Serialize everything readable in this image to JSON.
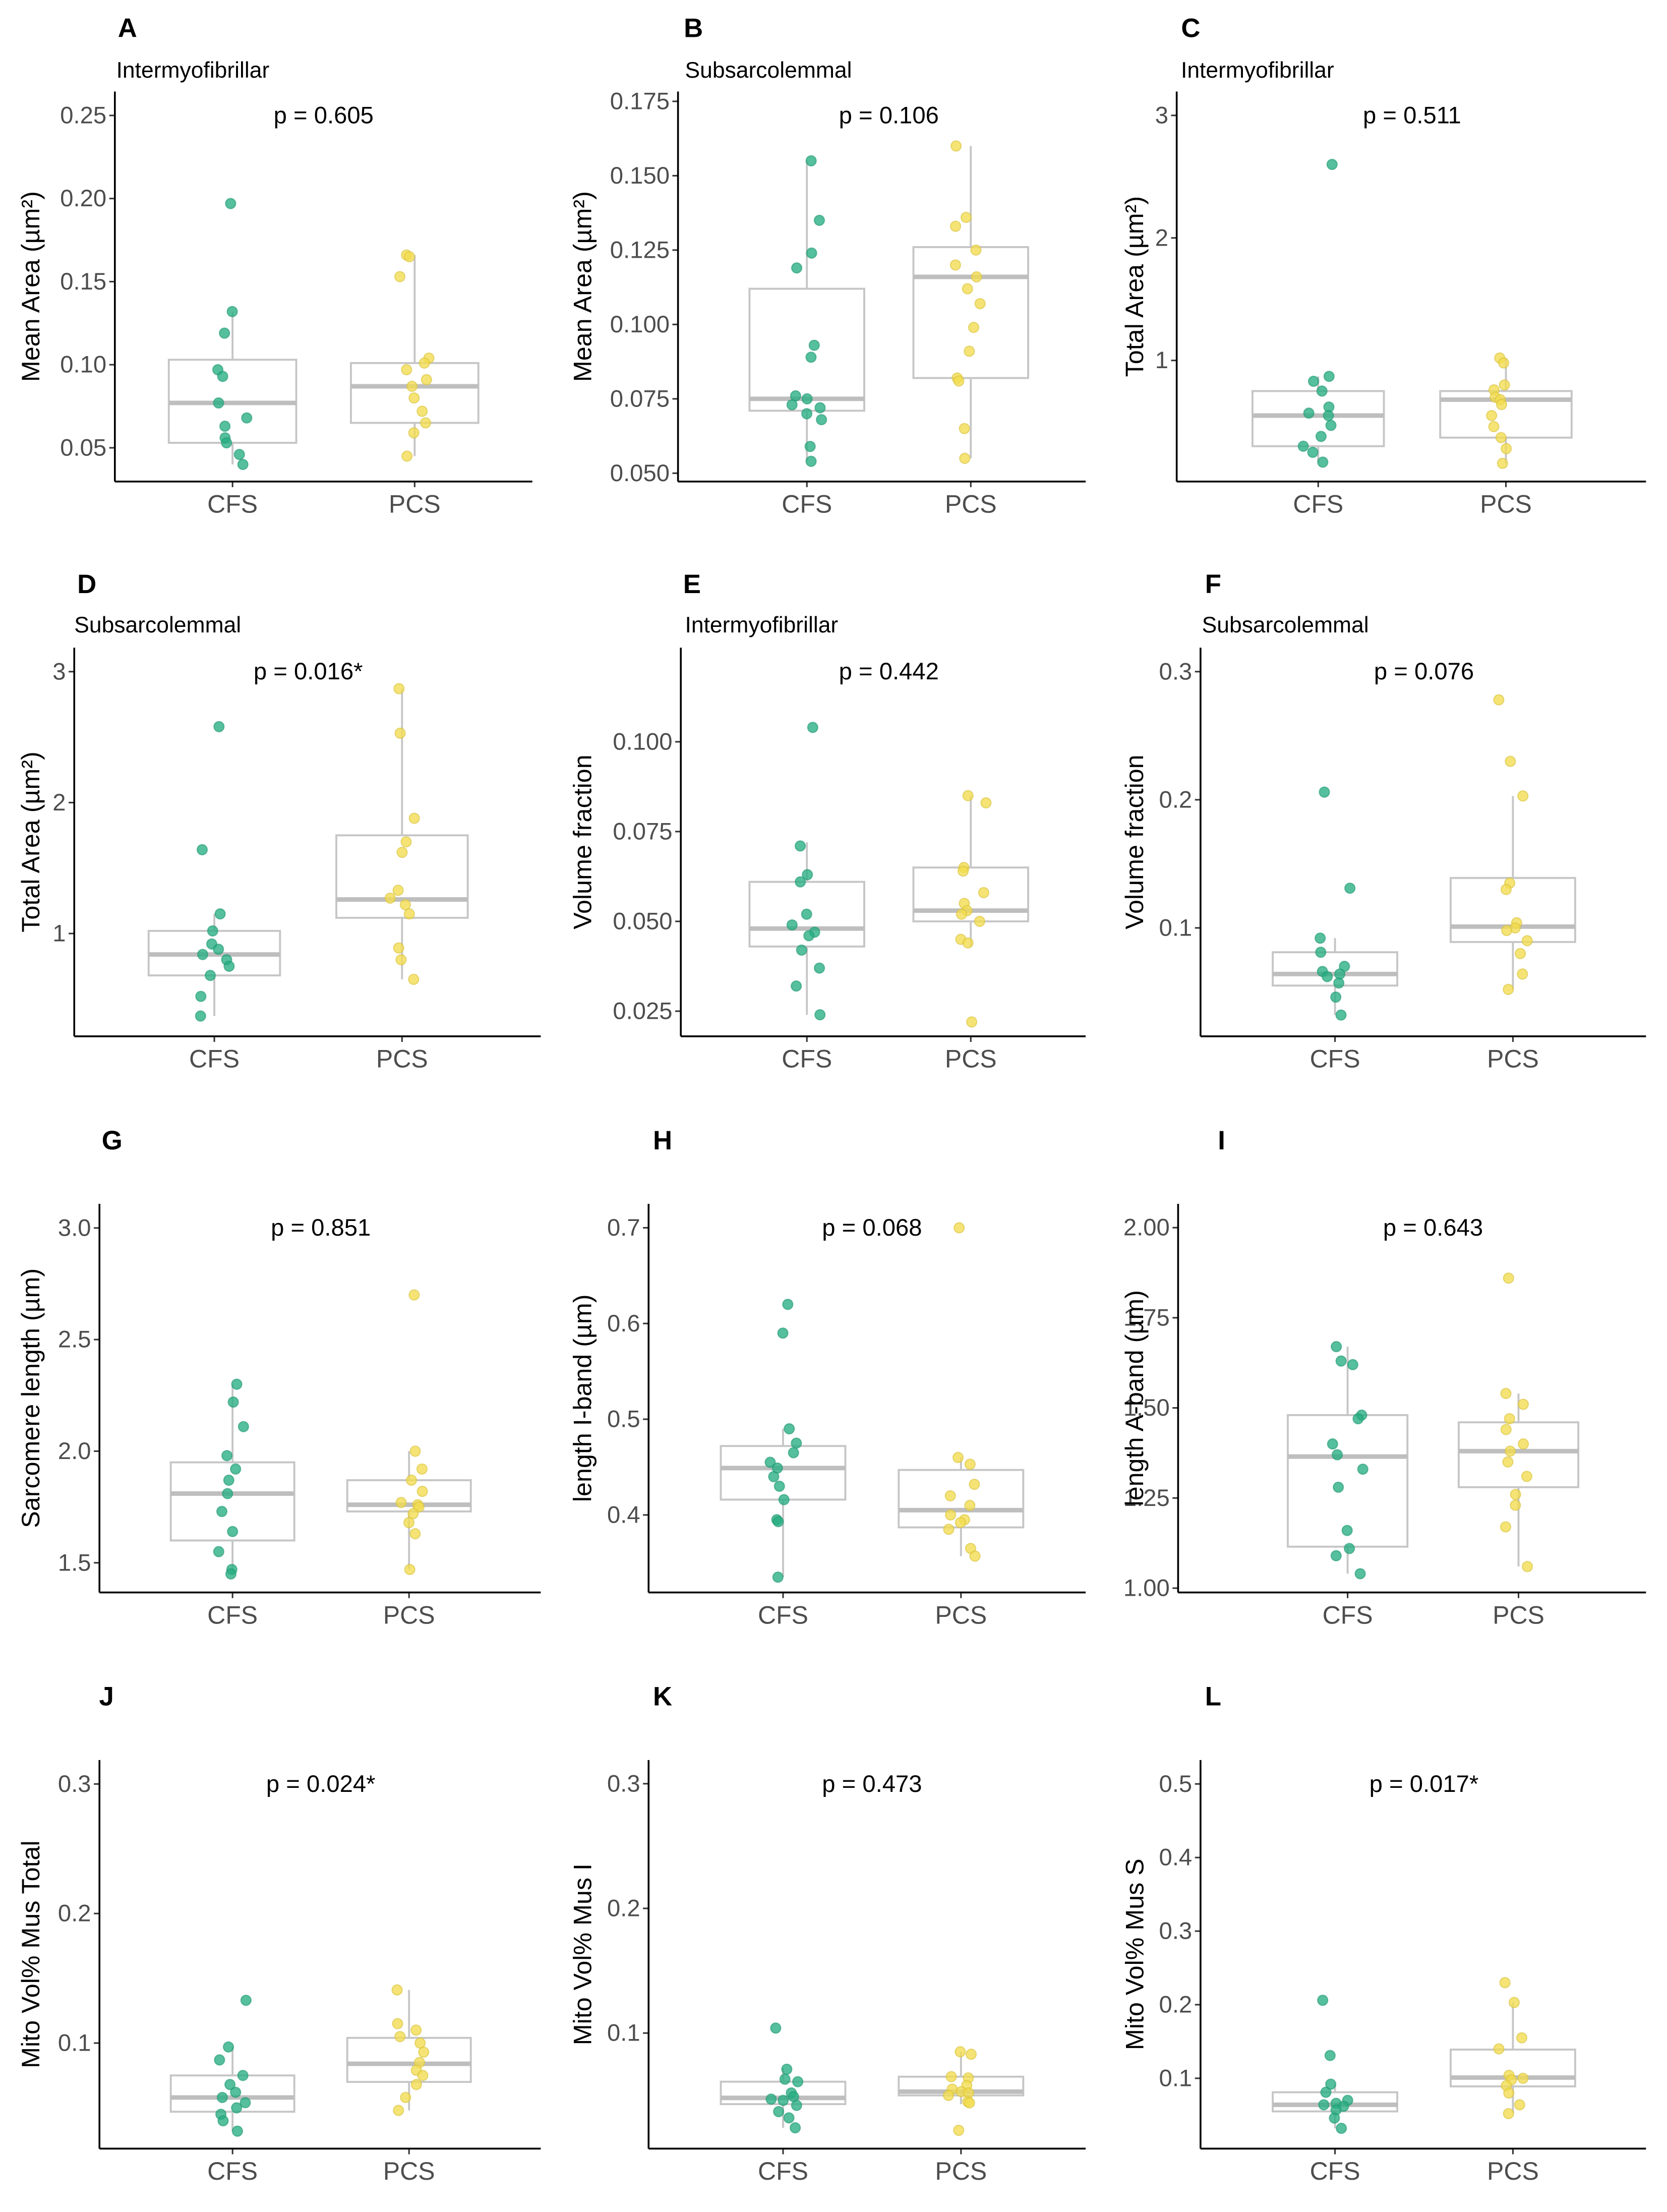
{
  "palette": {
    "groups": [
      "#27ad81",
      "#f2dc4e"
    ],
    "group_strokes": [
      "#1f9a70",
      "#d9c23a"
    ]
  },
  "chart_data": [
    {
      "panel": "A",
      "type": "scatter",
      "subtitle": "Intermyofibrillar",
      "title": "p = 0.605",
      "ylabel": "Mean Area (µm²)",
      "categories": [
        "CFS",
        "PCS"
      ],
      "yticks": [
        "0.05",
        "0.10",
        "0.15",
        "0.20",
        "0.25"
      ],
      "ylim": [
        0.0297,
        0.2644
      ],
      "series": [
        {
          "box": {
            "q1": 0.053,
            "median": 0.077,
            "q3": 0.103,
            "whisker_low": 0.04,
            "whisker_high": 0.132
          },
          "values": [
            0.197,
            0.132,
            0.119,
            0.097,
            0.093,
            0.077,
            0.068,
            0.063,
            0.056,
            0.053,
            0.046,
            0.04
          ]
        },
        {
          "box": {
            "q1": 0.065,
            "median": 0.087,
            "q3": 0.101,
            "whisker_low": 0.045,
            "whisker_high": 0.166
          },
          "values": [
            0.166,
            0.165,
            0.153,
            0.104,
            0.101,
            0.097,
            0.091,
            0.087,
            0.08,
            0.072,
            0.065,
            0.059,
            0.045
          ]
        }
      ]
    },
    {
      "panel": "B",
      "type": "scatter",
      "subtitle": "Subsarcolemmal",
      "title": "p = 0.106",
      "ylabel": "Mean Area (µm²)",
      "categories": [
        "CFS",
        "PCS"
      ],
      "yticks": [
        "0.050",
        "0.075",
        "0.100",
        "0.125",
        "0.150",
        "0.175"
      ],
      "ylim": [
        0.0472,
        0.1783
      ],
      "series": [
        {
          "box": {
            "q1": 0.071,
            "median": 0.075,
            "q3": 0.112,
            "whisker_low": 0.054,
            "whisker_high": 0.155
          },
          "values": [
            0.155,
            0.135,
            0.124,
            0.119,
            0.093,
            0.089,
            0.076,
            0.075,
            0.073,
            0.072,
            0.07,
            0.068,
            0.059,
            0.054
          ]
        },
        {
          "box": {
            "q1": 0.082,
            "median": 0.116,
            "q3": 0.126,
            "whisker_low": 0.055,
            "whisker_high": 0.16
          },
          "values": [
            0.16,
            0.136,
            0.133,
            0.125,
            0.12,
            0.116,
            0.112,
            0.107,
            0.099,
            0.091,
            0.082,
            0.081,
            0.065,
            0.055
          ]
        }
      ]
    },
    {
      "panel": "C",
      "type": "scatter",
      "subtitle": "Intermyofibrillar",
      "title": "p = 0.511",
      "ylabel": "Total Area (µm²)",
      "categories": [
        "CFS",
        "PCS"
      ],
      "yticks": [
        "1",
        "2",
        "3"
      ],
      "ylim": [
        0.0115,
        3.195
      ],
      "series": [
        {
          "box": {
            "q1": 0.3,
            "median": 0.55,
            "q3": 0.75,
            "whisker_low": 0.17,
            "whisker_high": 0.87
          },
          "values": [
            2.6,
            0.87,
            0.83,
            0.75,
            0.62,
            0.57,
            0.55,
            0.47,
            0.38,
            0.3,
            0.25,
            0.17
          ]
        },
        {
          "box": {
            "q1": 0.37,
            "median": 0.68,
            "q3": 0.75,
            "whisker_low": 0.16,
            "whisker_high": 1.02
          },
          "values": [
            1.02,
            0.98,
            0.8,
            0.76,
            0.7,
            0.68,
            0.64,
            0.55,
            0.46,
            0.37,
            0.28,
            0.16
          ]
        }
      ]
    },
    {
      "panel": "D",
      "type": "scatter",
      "subtitle": "Subsarcolemmal",
      "title": "p = 0.016*",
      "ylabel": "Total Area (µm²)",
      "categories": [
        "CFS",
        "PCS"
      ],
      "yticks": [
        "1",
        "2",
        "3"
      ],
      "ylim": [
        0.215,
        3.183
      ],
      "series": [
        {
          "box": {
            "q1": 0.68,
            "median": 0.84,
            "q3": 1.02,
            "whisker_low": 0.37,
            "whisker_high": 1.15
          },
          "values": [
            2.58,
            1.64,
            1.15,
            1.02,
            0.92,
            0.88,
            0.84,
            0.8,
            0.75,
            0.68,
            0.52,
            0.37
          ]
        },
        {
          "box": {
            "q1": 1.12,
            "median": 1.26,
            "q3": 1.75,
            "whisker_low": 0.65,
            "whisker_high": 2.87
          },
          "values": [
            2.87,
            2.53,
            1.88,
            1.7,
            1.62,
            1.33,
            1.27,
            1.22,
            1.15,
            0.89,
            0.8,
            0.65
          ]
        }
      ]
    },
    {
      "panel": "E",
      "type": "scatter",
      "subtitle": "Intermyofibrillar",
      "title": "p = 0.442",
      "ylabel": "Volume fraction",
      "categories": [
        "CFS",
        "PCS"
      ],
      "yticks": [
        "0.025",
        "0.050",
        "0.075",
        "0.100"
      ],
      "ylim": [
        0.018,
        0.1262
      ],
      "series": [
        {
          "box": {
            "q1": 0.043,
            "median": 0.048,
            "q3": 0.061,
            "whisker_low": 0.024,
            "whisker_high": 0.072
          },
          "values": [
            0.104,
            0.071,
            0.063,
            0.061,
            0.052,
            0.049,
            0.047,
            0.046,
            0.042,
            0.037,
            0.032,
            0.024
          ]
        },
        {
          "box": {
            "q1": 0.05,
            "median": 0.053,
            "q3": 0.065,
            "whisker_low": 0.043,
            "whisker_high": 0.085
          },
          "values": [
            0.085,
            0.083,
            0.065,
            0.064,
            0.058,
            0.055,
            0.053,
            0.052,
            0.05,
            0.045,
            0.044,
            0.022
          ]
        }
      ]
    },
    {
      "panel": "F",
      "type": "scatter",
      "subtitle": "Subsarcolemmal",
      "title": "p = 0.076",
      "ylabel": "Volume fraction",
      "categories": [
        "CFS",
        "PCS"
      ],
      "yticks": [
        "0.1",
        "0.2",
        "0.3"
      ],
      "ylim": [
        0.0154,
        0.3187
      ],
      "series": [
        {
          "box": {
            "q1": 0.055,
            "median": 0.064,
            "q3": 0.081,
            "whisker_low": 0.032,
            "whisker_high": 0.092
          },
          "values": [
            0.206,
            0.131,
            0.092,
            0.081,
            0.07,
            0.066,
            0.064,
            0.062,
            0.057,
            0.046,
            0.032
          ]
        },
        {
          "box": {
            "q1": 0.089,
            "median": 0.101,
            "q3": 0.139,
            "whisker_low": 0.052,
            "whisker_high": 0.203
          },
          "values": [
            0.278,
            0.23,
            0.203,
            0.135,
            0.13,
            0.104,
            0.1,
            0.098,
            0.09,
            0.08,
            0.064,
            0.052
          ]
        }
      ]
    },
    {
      "panel": "G",
      "type": "scatter",
      "title": "p = 0.851",
      "ylabel": "Sarcomere length (µm)",
      "categories": [
        "CFS",
        "PCS"
      ],
      "yticks": [
        "1.5",
        "2.0",
        "2.5",
        "3.0"
      ],
      "ylim": [
        1.367,
        3.108
      ],
      "series": [
        {
          "box": {
            "q1": 1.6,
            "median": 1.81,
            "q3": 1.95,
            "whisker_low": 1.45,
            "whisker_high": 2.3
          },
          "values": [
            2.3,
            2.22,
            2.11,
            1.98,
            1.92,
            1.87,
            1.81,
            1.73,
            1.64,
            1.55,
            1.47,
            1.45
          ]
        },
        {
          "box": {
            "q1": 1.73,
            "median": 1.76,
            "q3": 1.87,
            "whisker_low": 1.47,
            "whisker_high": 2.0
          },
          "values": [
            2.7,
            2.0,
            1.92,
            1.87,
            1.82,
            1.77,
            1.76,
            1.75,
            1.72,
            1.68,
            1.63,
            1.47
          ]
        }
      ]
    },
    {
      "panel": "H",
      "type": "scatter",
      "title": "p = 0.068",
      "ylabel": "length I-band (µm)",
      "categories": [
        "CFS",
        "PCS"
      ],
      "yticks": [
        "0.4",
        "0.5",
        "0.6",
        "0.7"
      ],
      "ylim": [
        0.319,
        0.725
      ],
      "series": [
        {
          "box": {
            "q1": 0.416,
            "median": 0.449,
            "q3": 0.472,
            "whisker_low": 0.335,
            "whisker_high": 0.49
          },
          "values": [
            0.62,
            0.59,
            0.49,
            0.475,
            0.465,
            0.455,
            0.449,
            0.44,
            0.43,
            0.416,
            0.395,
            0.393,
            0.335
          ]
        },
        {
          "box": {
            "q1": 0.387,
            "median": 0.405,
            "q3": 0.447,
            "whisker_low": 0.357,
            "whisker_high": 0.46
          },
          "values": [
            0.7,
            0.46,
            0.453,
            0.432,
            0.42,
            0.41,
            0.4,
            0.395,
            0.392,
            0.385,
            0.365,
            0.357
          ]
        }
      ]
    },
    {
      "panel": "I",
      "type": "scatter",
      "title": "p = 0.643",
      "ylabel": "length A-band (µm)",
      "categories": [
        "CFS",
        "PCS"
      ],
      "yticks": [
        "1.00",
        "1.25",
        "1.50",
        "1.75",
        "2.00"
      ],
      "ylim": [
        0.988,
        2.066
      ],
      "series": [
        {
          "box": {
            "q1": 1.115,
            "median": 1.365,
            "q3": 1.48,
            "whisker_low": 1.04,
            "whisker_high": 1.67
          },
          "values": [
            1.67,
            1.63,
            1.62,
            1.48,
            1.47,
            1.4,
            1.37,
            1.33,
            1.28,
            1.16,
            1.11,
            1.09,
            1.04
          ]
        },
        {
          "box": {
            "q1": 1.28,
            "median": 1.38,
            "q3": 1.46,
            "whisker_low": 1.06,
            "whisker_high": 1.54
          },
          "values": [
            1.86,
            1.54,
            1.51,
            1.47,
            1.44,
            1.4,
            1.38,
            1.35,
            1.31,
            1.26,
            1.23,
            1.17,
            1.06
          ]
        }
      ]
    },
    {
      "panel": "J",
      "type": "scatter",
      "title": "p = 0.024*",
      "ylabel": "Mito Vol% Mus Total",
      "categories": [
        "CFS",
        "PCS"
      ],
      "yticks": [
        "0.1",
        "0.2",
        "0.3"
      ],
      "ylim": [
        0.0185,
        0.3185
      ],
      "series": [
        {
          "box": {
            "q1": 0.047,
            "median": 0.058,
            "q3": 0.075,
            "whisker_low": 0.032,
            "whisker_high": 0.097
          },
          "values": [
            0.133,
            0.097,
            0.087,
            0.075,
            0.068,
            0.062,
            0.058,
            0.054,
            0.05,
            0.045,
            0.04,
            0.032
          ]
        },
        {
          "box": {
            "q1": 0.07,
            "median": 0.084,
            "q3": 0.104,
            "whisker_low": 0.048,
            "whisker_high": 0.141
          },
          "values": [
            0.141,
            0.115,
            0.11,
            0.105,
            0.1,
            0.093,
            0.085,
            0.079,
            0.075,
            0.068,
            0.058,
            0.048
          ]
        }
      ]
    },
    {
      "panel": "K",
      "type": "scatter",
      "title": "p = 0.473",
      "ylabel": "Mito Vol% Mus I",
      "categories": [
        "CFS",
        "PCS"
      ],
      "yticks": [
        "0.1",
        "0.2",
        "0.3"
      ],
      "ylim": [
        0.0073,
        0.319
      ],
      "series": [
        {
          "box": {
            "q1": 0.043,
            "median": 0.048,
            "q3": 0.061,
            "whisker_low": 0.024,
            "whisker_high": 0.072
          },
          "values": [
            0.104,
            0.071,
            0.063,
            0.061,
            0.052,
            0.049,
            0.047,
            0.046,
            0.042,
            0.037,
            0.032,
            0.024
          ]
        },
        {
          "box": {
            "q1": 0.05,
            "median": 0.053,
            "q3": 0.065,
            "whisker_low": 0.043,
            "whisker_high": 0.085
          },
          "values": [
            0.085,
            0.083,
            0.065,
            0.064,
            0.058,
            0.055,
            0.053,
            0.052,
            0.05,
            0.045,
            0.044,
            0.022
          ]
        }
      ]
    },
    {
      "panel": "L",
      "type": "scatter",
      "title": "p = 0.017*",
      "ylabel": "Mito Vol% Mus S",
      "categories": [
        "CFS",
        "PCS"
      ],
      "yticks": [
        "0.1",
        "0.2",
        "0.3",
        "0.4",
        "0.5"
      ],
      "ylim": [
        0.0044,
        0.5325
      ],
      "series": [
        {
          "box": {
            "q1": 0.055,
            "median": 0.064,
            "q3": 0.081,
            "whisker_low": 0.032,
            "whisker_high": 0.092
          },
          "values": [
            0.206,
            0.131,
            0.092,
            0.081,
            0.07,
            0.066,
            0.064,
            0.062,
            0.057,
            0.046,
            0.032
          ]
        },
        {
          "box": {
            "q1": 0.089,
            "median": 0.101,
            "q3": 0.139,
            "whisker_low": 0.052,
            "whisker_high": 0.203
          },
          "values": [
            0.23,
            0.203,
            0.155,
            0.14,
            0.104,
            0.1,
            0.098,
            0.09,
            0.08,
            0.064,
            0.052
          ]
        }
      ]
    }
  ]
}
